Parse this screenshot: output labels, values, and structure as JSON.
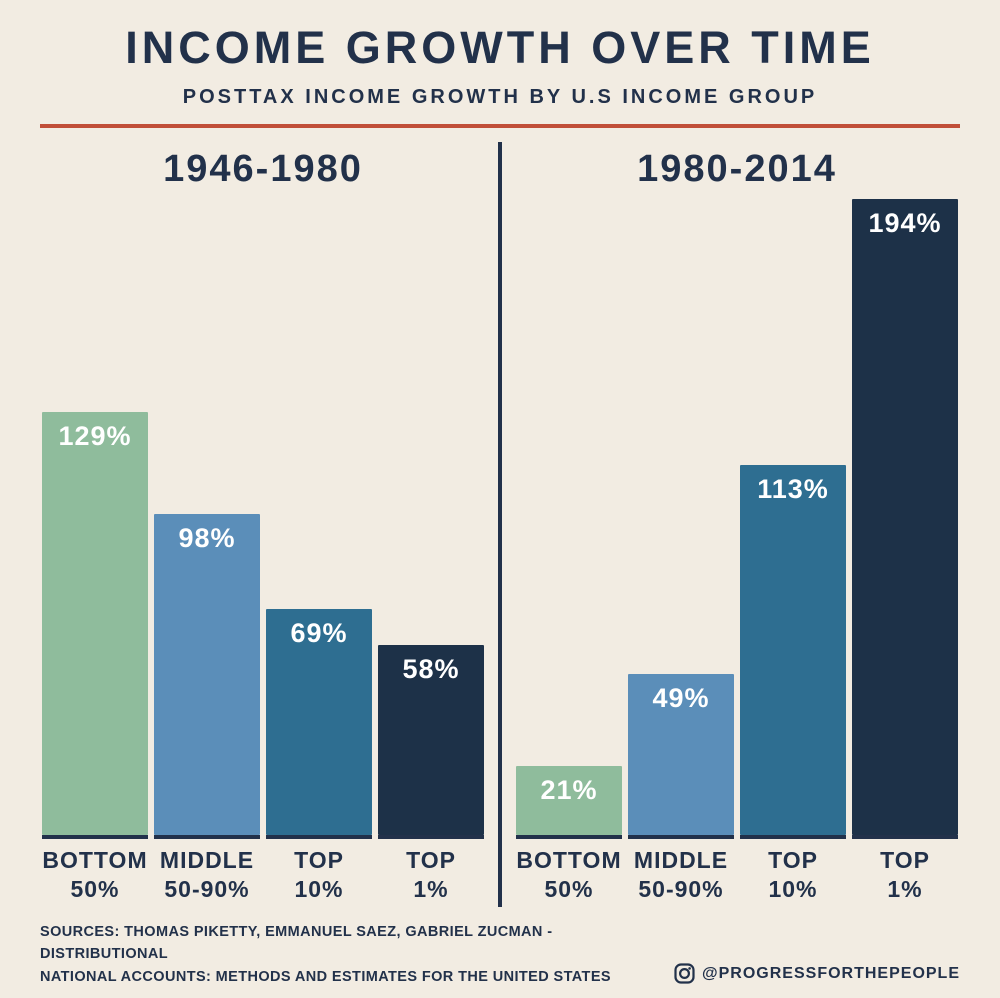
{
  "header": {
    "title": "INCOME GROWTH OVER TIME",
    "subtitle": "POSTTAX INCOME GROWTH BY U.S INCOME GROUP"
  },
  "chart_data": {
    "type": "bar",
    "categories": [
      "BOTTOM 50%",
      "MIDDLE 50-90%",
      "TOP 10%",
      "TOP 1%"
    ],
    "panels": [
      {
        "title": "1946-1980",
        "values": [
          129,
          98,
          69,
          58
        ]
      },
      {
        "title": "1980-2014",
        "values": [
          21,
          49,
          113,
          194
        ]
      }
    ],
    "series_note": "Posttax income growth (%) by U.S. income group, two periods",
    "value_suffix": "%",
    "bar_colors": [
      "#8fbc9c",
      "#5b8eb9",
      "#2e6e91",
      "#1d3148"
    ],
    "ylim": [
      0,
      200
    ],
    "grid": false,
    "legend": "none"
  },
  "footer": {
    "sources_line1": "SOURCES: THOMAS PIKETTY, EMMANUEL SAEZ, GABRIEL ZUCMAN - DISTRIBUTIONAL",
    "sources_line2": "NATIONAL ACCOUNTS: METHODS AND ESTIMATES FOR THE UNITED STATES",
    "instagram_handle": "@PROGRESSFORTHEPEOPLE"
  },
  "colors": {
    "background": "#f2ece2",
    "text_navy": "#22314a",
    "accent_red": "#c14f38",
    "bar_green": "#8fbc9c",
    "bar_blue": "#5b8eb9",
    "bar_teal": "#2e6e91",
    "bar_navy": "#1d3148"
  }
}
